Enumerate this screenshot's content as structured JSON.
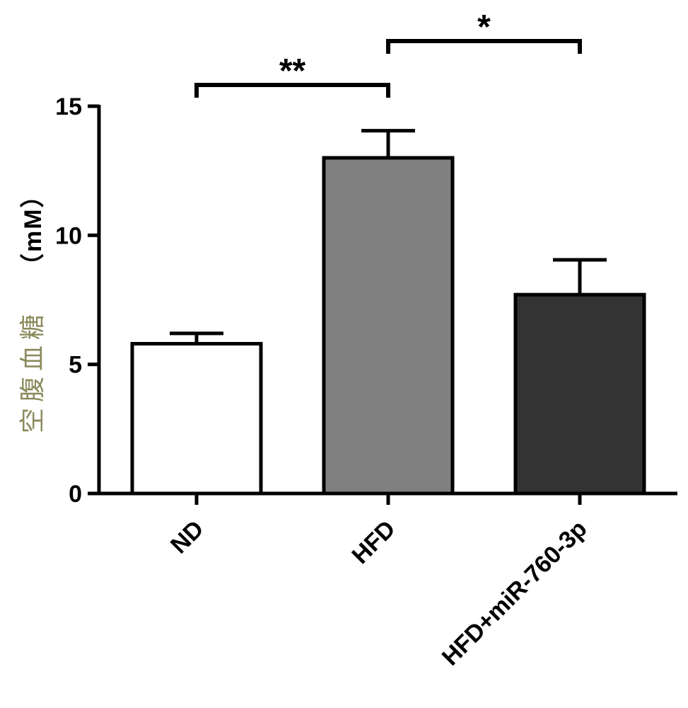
{
  "chart_data": {
    "type": "bar",
    "categories": [
      "ND",
      "HFD",
      "HFD+miR-760-3p"
    ],
    "values": [
      5.8,
      13.0,
      7.7
    ],
    "errors": [
      0.4,
      1.05,
      1.35
    ],
    "bar_colors": [
      "#ffffff",
      "#808080",
      "#333333"
    ],
    "ylabel_cn": "空腹血糖",
    "ylabel_unit": "（mM）",
    "ylabel_color": "#8a8a5c",
    "ylim": [
      0,
      15
    ],
    "yticks": [
      "0",
      "5",
      "10",
      "15"
    ],
    "grid": false,
    "significance": [
      {
        "from": 0,
        "to": 1,
        "label": "**"
      },
      {
        "from": 1,
        "to": 2,
        "label": "*"
      }
    ]
  }
}
